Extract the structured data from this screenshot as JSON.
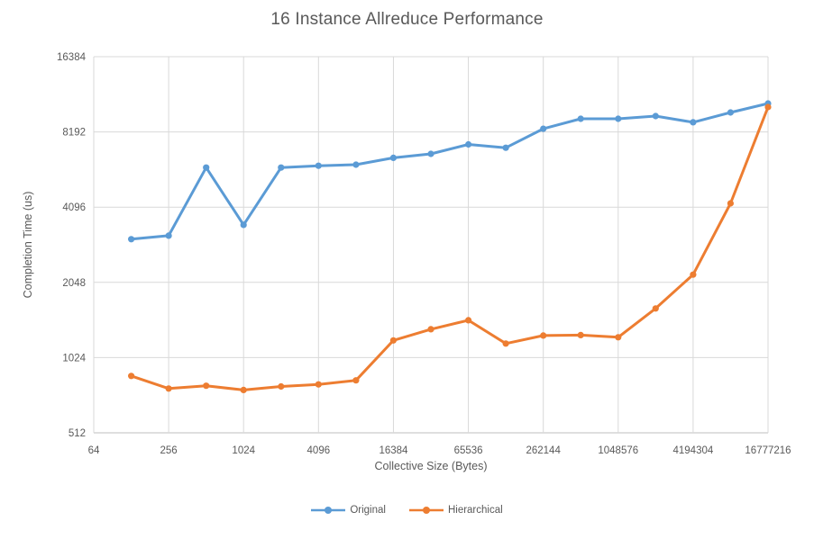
{
  "chart_data": {
    "type": "line",
    "title": "16 Instance Allreduce Performance",
    "xlabel": "Collective Size (Bytes)",
    "ylabel": "Completion Time (us)",
    "x_scale": "log2",
    "y_scale": "log2",
    "xlim": [
      64,
      16777216
    ],
    "ylim": [
      512,
      16384
    ],
    "grid": true,
    "legend_position": "bottom-center",
    "x_ticks": [
      64,
      256,
      1024,
      4096,
      16384,
      65536,
      262144,
      1048576,
      4194304,
      16777216
    ],
    "y_ticks": [
      512,
      1024,
      2048,
      4096,
      8192,
      16384
    ],
    "x": [
      128,
      256,
      512,
      1024,
      2048,
      4096,
      8192,
      16384,
      32768,
      65536,
      131072,
      262144,
      524288,
      1048576,
      2097152,
      4194304,
      8388608,
      16777216
    ],
    "series": [
      {
        "name": "Original",
        "color": "#5B9BD5",
        "values": [
          3050,
          3150,
          5900,
          3480,
          5900,
          6000,
          6060,
          6450,
          6690,
          7300,
          7080,
          8430,
          9250,
          9250,
          9480,
          8950,
          9800,
          10650
        ]
      },
      {
        "name": "Hierarchical",
        "color": "#ED7D31",
        "values": [
          865,
          770,
          790,
          760,
          785,
          800,
          830,
          1200,
          1330,
          1445,
          1165,
          1255,
          1260,
          1235,
          1610,
          2200,
          4240,
          10300
        ]
      }
    ],
    "grid_color": "#D9D9D9",
    "axis_line_color": "#BFBFBF",
    "text_color": "#595959"
  }
}
